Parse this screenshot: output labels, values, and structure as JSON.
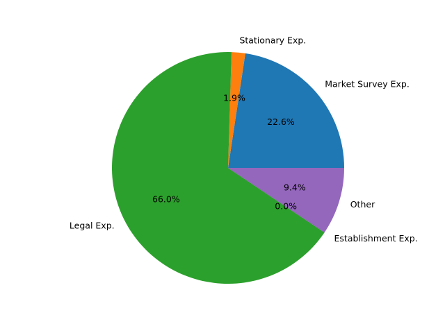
{
  "chart_data": {
    "type": "pie",
    "title": "",
    "slices": [
      {
        "label": "Market Survey Exp.",
        "percent_label": "22.6%",
        "value": 22.6,
        "color": "#1f77b4"
      },
      {
        "label": "Stationary Exp.",
        "percent_label": "1.9%",
        "value": 1.9,
        "color": "#ff7f0e"
      },
      {
        "label": "Legal Exp.",
        "percent_label": "66.0%",
        "value": 66.0,
        "color": "#2ca02c"
      },
      {
        "label": "Establishment Exp.",
        "percent_label": "0.0%",
        "value": 0.0,
        "color": "#d62728"
      },
      {
        "label": "Other",
        "percent_label": "9.4%",
        "value": 9.4,
        "color": "#9467bd"
      }
    ],
    "start_angle_deg": 0,
    "direction": "counterclockwise",
    "legend": "none"
  }
}
